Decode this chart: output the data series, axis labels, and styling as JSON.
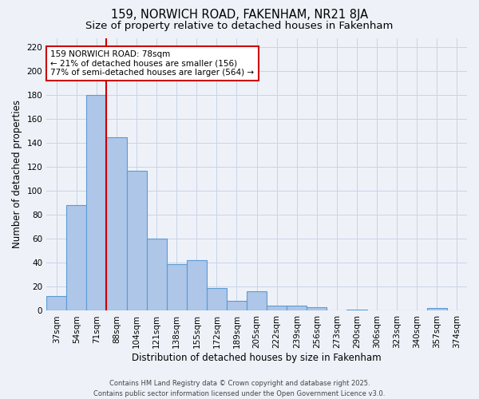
{
  "title1": "159, NORWICH ROAD, FAKENHAM, NR21 8JA",
  "title2": "Size of property relative to detached houses in Fakenham",
  "xlabel": "Distribution of detached houses by size in Fakenham",
  "ylabel": "Number of detached properties",
  "categories": [
    "37sqm",
    "54sqm",
    "71sqm",
    "88sqm",
    "104sqm",
    "121sqm",
    "138sqm",
    "155sqm",
    "172sqm",
    "189sqm",
    "205sqm",
    "222sqm",
    "239sqm",
    "256sqm",
    "273sqm",
    "290sqm",
    "306sqm",
    "323sqm",
    "340sqm",
    "357sqm",
    "374sqm"
  ],
  "values": [
    12,
    88,
    180,
    145,
    117,
    60,
    39,
    42,
    19,
    8,
    16,
    4,
    4,
    3,
    0,
    1,
    0,
    0,
    0,
    2,
    0
  ],
  "bar_color": "#aec6e8",
  "bar_edge_color": "#5b9bd5",
  "grid_color": "#c8d4e8",
  "background_color": "#eef2f8",
  "vline_color": "#cc0000",
  "annotation_text": "159 NORWICH ROAD: 78sqm\n← 21% of detached houses are smaller (156)\n77% of semi-detached houses are larger (564) →",
  "annotation_box_facecolor": "#ffffff",
  "annotation_box_edge": "#cc0000",
  "ylim": [
    0,
    228
  ],
  "yticks": [
    0,
    20,
    40,
    60,
    80,
    100,
    120,
    140,
    160,
    180,
    200,
    220
  ],
  "footer": "Contains HM Land Registry data © Crown copyright and database right 2025.\nContains public sector information licensed under the Open Government Licence v3.0.",
  "title_fontsize": 10.5,
  "subtitle_fontsize": 9.5,
  "axis_label_fontsize": 8.5,
  "tick_fontsize": 7.5,
  "annotation_fontsize": 7.5,
  "footer_fontsize": 6.0
}
